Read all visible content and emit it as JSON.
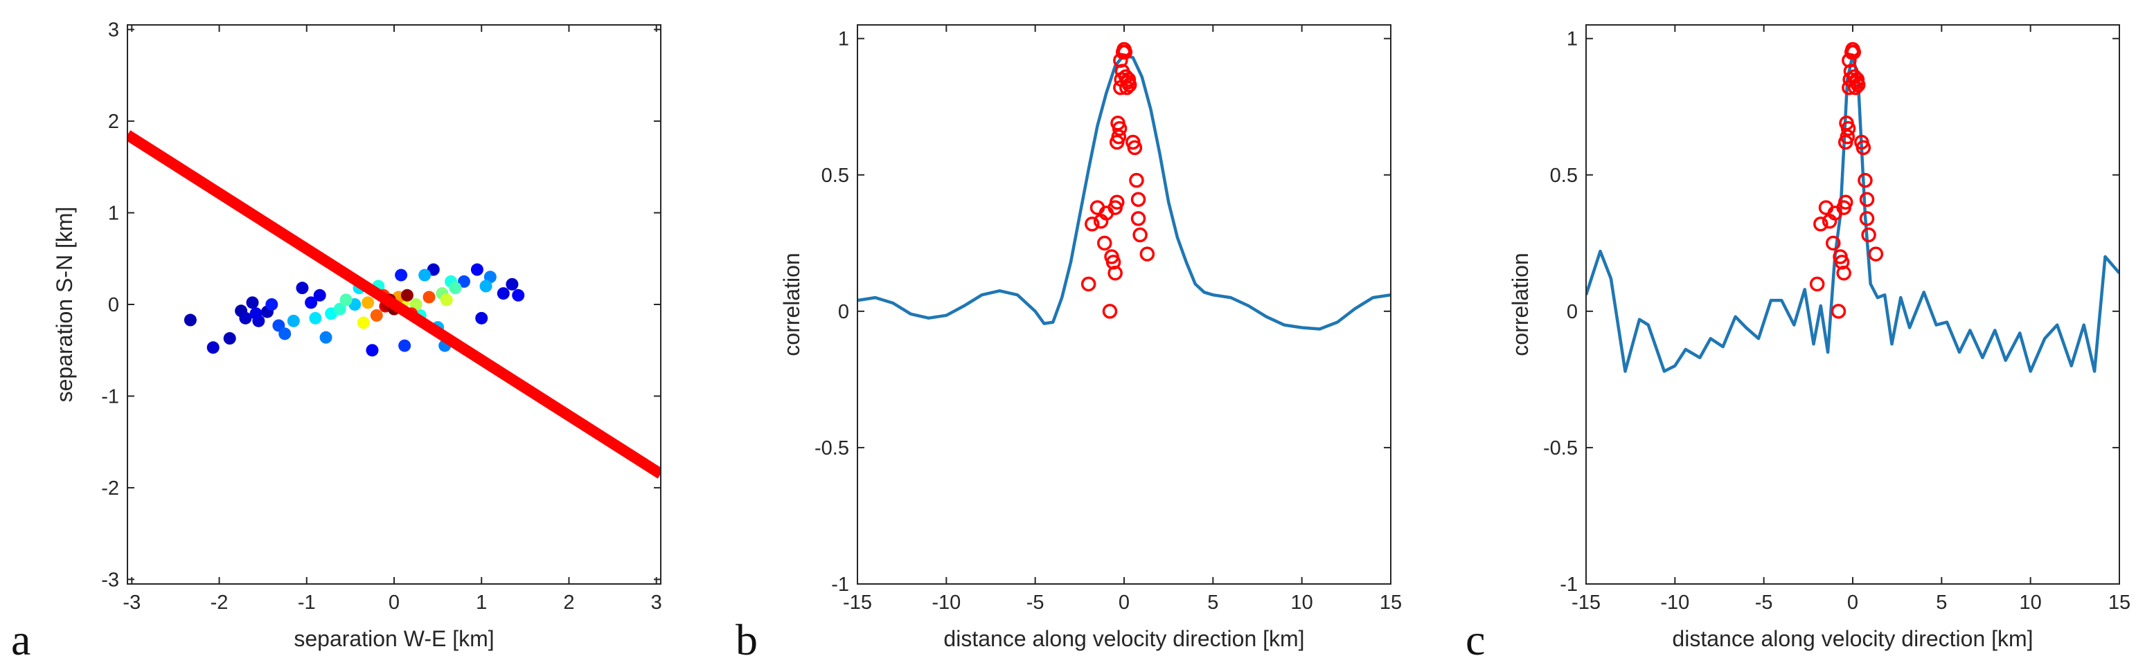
{
  "chart_data": [
    {
      "type": "scatter",
      "panel_label": "a",
      "title": "",
      "xlabel": "separation W-E [km]",
      "ylabel": "separation S-N [km]",
      "xlim": [
        -3.05,
        3.05
      ],
      "ylim": [
        -3.05,
        3.05
      ],
      "xticks": [
        -3,
        -2,
        -1,
        0,
        1,
        2,
        3
      ],
      "yticks": [
        -3,
        -2,
        -1,
        0,
        1,
        2,
        3
      ],
      "xtick_labels": [
        "-3",
        "-2",
        "-1",
        "0",
        "1",
        "2",
        "3"
      ],
      "ytick_labels": [
        "-3",
        "-2",
        "-1",
        "0",
        "1",
        "2",
        "3"
      ],
      "grid": false,
      "line": {
        "name": "velocity direction",
        "x": [
          -3.05,
          3.05
        ],
        "y": [
          1.85,
          -1.85
        ],
        "color": "#ff0000"
      },
      "points": [
        {
          "x": -2.33,
          "y": -0.17,
          "c": 0.05
        },
        {
          "x": -2.07,
          "y": -0.47,
          "c": 0.08
        },
        {
          "x": -1.88,
          "y": -0.37,
          "c": 0.06
        },
        {
          "x": -1.75,
          "y": -0.07,
          "c": 0.05
        },
        {
          "x": -1.7,
          "y": -0.15,
          "c": 0.07
        },
        {
          "x": -1.62,
          "y": 0.02,
          "c": 0.06
        },
        {
          "x": -1.58,
          "y": -0.1,
          "c": 0.1
        },
        {
          "x": -1.55,
          "y": -0.18,
          "c": 0.08
        },
        {
          "x": -1.45,
          "y": -0.08,
          "c": 0.06
        },
        {
          "x": -1.4,
          "y": 0.0,
          "c": 0.15
        },
        {
          "x": -1.32,
          "y": -0.23,
          "c": 0.2
        },
        {
          "x": -1.25,
          "y": -0.32,
          "c": 0.22
        },
        {
          "x": -1.15,
          "y": -0.18,
          "c": 0.3
        },
        {
          "x": -1.05,
          "y": 0.18,
          "c": 0.08
        },
        {
          "x": -0.95,
          "y": 0.02,
          "c": 0.12
        },
        {
          "x": -0.9,
          "y": -0.15,
          "c": 0.35
        },
        {
          "x": -0.85,
          "y": 0.1,
          "c": 0.1
        },
        {
          "x": -0.78,
          "y": -0.36,
          "c": 0.25
        },
        {
          "x": -0.72,
          "y": -0.1,
          "c": 0.38
        },
        {
          "x": -0.62,
          "y": -0.05,
          "c": 0.42
        },
        {
          "x": -0.55,
          "y": 0.05,
          "c": 0.45
        },
        {
          "x": -0.45,
          "y": 0.0,
          "c": 0.32
        },
        {
          "x": -0.4,
          "y": 0.18,
          "c": 0.35
        },
        {
          "x": -0.35,
          "y": -0.2,
          "c": 0.62
        },
        {
          "x": -0.3,
          "y": 0.02,
          "c": 0.7
        },
        {
          "x": -0.25,
          "y": -0.5,
          "c": 0.12
        },
        {
          "x": -0.2,
          "y": -0.12,
          "c": 0.78
        },
        {
          "x": -0.18,
          "y": 0.2,
          "c": 0.4
        },
        {
          "x": -0.12,
          "y": 0.1,
          "c": 0.82
        },
        {
          "x": -0.1,
          "y": -0.02,
          "c": 0.9
        },
        {
          "x": -0.08,
          "y": 0.0,
          "c": 0.95
        },
        {
          "x": -0.05,
          "y": 0.05,
          "c": 0.98
        },
        {
          "x": 0.0,
          "y": -0.05,
          "c": 1.0
        },
        {
          "x": 0.05,
          "y": 0.08,
          "c": 0.72
        },
        {
          "x": 0.08,
          "y": 0.32,
          "c": 0.15
        },
        {
          "x": 0.1,
          "y": 0.02,
          "c": 0.6
        },
        {
          "x": 0.12,
          "y": -0.45,
          "c": 0.18
        },
        {
          "x": 0.15,
          "y": 0.1,
          "c": 0.98
        },
        {
          "x": 0.2,
          "y": -0.1,
          "c": 0.85
        },
        {
          "x": 0.25,
          "y": 0.0,
          "c": 0.55
        },
        {
          "x": 0.3,
          "y": -0.12,
          "c": 0.4
        },
        {
          "x": 0.35,
          "y": 0.32,
          "c": 0.3
        },
        {
          "x": 0.4,
          "y": 0.08,
          "c": 0.8
        },
        {
          "x": 0.45,
          "y": 0.38,
          "c": 0.08
        },
        {
          "x": 0.5,
          "y": -0.25,
          "c": 0.3
        },
        {
          "x": 0.55,
          "y": 0.12,
          "c": 0.5
        },
        {
          "x": 0.58,
          "y": -0.45,
          "c": 0.25
        },
        {
          "x": 0.6,
          "y": 0.05,
          "c": 0.58
        },
        {
          "x": 0.65,
          "y": 0.25,
          "c": 0.4
        },
        {
          "x": 0.7,
          "y": 0.18,
          "c": 0.45
        },
        {
          "x": 0.8,
          "y": 0.25,
          "c": 0.2
        },
        {
          "x": 0.95,
          "y": 0.38,
          "c": 0.12
        },
        {
          "x": 1.0,
          "y": -0.15,
          "c": 0.1
        },
        {
          "x": 1.05,
          "y": 0.2,
          "c": 0.3
        },
        {
          "x": 1.1,
          "y": 0.3,
          "c": 0.25
        },
        {
          "x": 1.25,
          "y": 0.12,
          "c": 0.1
        },
        {
          "x": 1.35,
          "y": 0.22,
          "c": 0.08
        },
        {
          "x": 1.42,
          "y": 0.1,
          "c": 0.12
        }
      ]
    },
    {
      "type": "line",
      "panel_label": "b",
      "title": "",
      "xlabel": "distance along velocity direction [km]",
      "ylabel": "correlation",
      "xlim": [
        -15,
        15
      ],
      "ylim": [
        -1,
        1.05
      ],
      "xticks": [
        -15,
        -10,
        -5,
        0,
        5,
        10,
        15
      ],
      "yticks": [
        -1,
        -0.5,
        0,
        0.5,
        1
      ],
      "xtick_labels": [
        "-15",
        "-10",
        "-5",
        "0",
        "5",
        "10",
        "15"
      ],
      "ytick_labels": [
        "-1",
        "-0.5",
        "0",
        "0.5",
        "1"
      ],
      "grid": false,
      "series": [
        {
          "name": "model curve",
          "color": "#1f77b4",
          "x": [
            -15,
            -14,
            -13,
            -12,
            -11,
            -10,
            -9,
            -8,
            -7,
            -6,
            -5,
            -4.5,
            -4,
            -3.5,
            -3,
            -2.5,
            -2,
            -1.5,
            -1,
            -0.5,
            0,
            0.5,
            1,
            1.5,
            2,
            2.5,
            3,
            3.5,
            4,
            4.5,
            5,
            6,
            7,
            8,
            9,
            10,
            11,
            12,
            13,
            14,
            15
          ],
          "y": [
            0.04,
            0.05,
            0.03,
            -0.01,
            -0.025,
            -0.015,
            0.02,
            0.06,
            0.075,
            0.06,
            0.0,
            -0.045,
            -0.04,
            0.05,
            0.18,
            0.35,
            0.52,
            0.68,
            0.8,
            0.9,
            0.94,
            0.93,
            0.86,
            0.74,
            0.58,
            0.4,
            0.27,
            0.18,
            0.1,
            0.07,
            0.06,
            0.05,
            0.02,
            -0.02,
            -0.05,
            -0.06,
            -0.065,
            -0.04,
            0.01,
            0.05,
            0.06
          ]
        }
      ],
      "points": {
        "name": "observed",
        "color": "#ff0000",
        "x": [
          -2.0,
          -1.8,
          -1.5,
          -1.3,
          -1.1,
          -1.0,
          -0.8,
          -0.7,
          -0.6,
          -0.5,
          -0.5,
          -0.4,
          -0.4,
          -0.35,
          -0.3,
          -0.25,
          -0.2,
          -0.2,
          -0.15,
          -0.1,
          -0.05,
          0.0,
          0.05,
          0.1,
          0.15,
          0.2,
          0.25,
          0.3,
          0.5,
          0.6,
          0.7,
          0.8,
          0.8,
          0.9,
          1.3
        ],
        "y": [
          0.1,
          0.32,
          0.38,
          0.33,
          0.25,
          0.36,
          0.0,
          0.2,
          0.18,
          0.38,
          0.14,
          0.4,
          0.62,
          0.69,
          0.64,
          0.67,
          0.82,
          0.92,
          0.85,
          0.88,
          0.95,
          0.96,
          0.95,
          0.86,
          0.82,
          0.84,
          0.85,
          0.83,
          0.62,
          0.6,
          0.48,
          0.41,
          0.34,
          0.28,
          0.21
        ]
      }
    },
    {
      "type": "line",
      "panel_label": "c",
      "title": "",
      "xlabel": "distance along velocity direction [km]",
      "ylabel": "correlation",
      "xlim": [
        -15,
        15
      ],
      "ylim": [
        -1,
        1.05
      ],
      "xticks": [
        -15,
        -10,
        -5,
        0,
        5,
        10,
        15
      ],
      "yticks": [
        -1,
        -0.5,
        0,
        0.5,
        1
      ],
      "xtick_labels": [
        "-15",
        "-10",
        "-5",
        "0",
        "5",
        "10",
        "15"
      ],
      "ytick_labels": [
        "-1",
        "-0.5",
        "0",
        "0.5",
        "1"
      ],
      "grid": false,
      "series": [
        {
          "name": "model curve",
          "color": "#1f77b4",
          "x": [
            -15,
            -14.2,
            -13.6,
            -12.8,
            -12.0,
            -11.5,
            -10.6,
            -10.0,
            -9.4,
            -8.6,
            -8.0,
            -7.3,
            -6.6,
            -6.0,
            -5.3,
            -4.6,
            -4.0,
            -3.3,
            -2.7,
            -2.2,
            -1.8,
            -1.4,
            -1.0,
            -0.7,
            -0.5,
            -0.3,
            0.0,
            0.3,
            0.5,
            0.7,
            1.0,
            1.4,
            1.8,
            2.2,
            2.7,
            3.2,
            4.0,
            4.7,
            5.3,
            6.0,
            6.6,
            7.3,
            8.0,
            8.6,
            9.4,
            10.0,
            10.8,
            11.5,
            12.3,
            13.0,
            13.6,
            14.2,
            15.0
          ],
          "y": [
            0.06,
            0.22,
            0.12,
            -0.22,
            -0.03,
            -0.05,
            -0.22,
            -0.2,
            -0.14,
            -0.17,
            -0.1,
            -0.13,
            -0.02,
            -0.06,
            -0.1,
            0.04,
            0.04,
            -0.05,
            0.08,
            -0.12,
            0.02,
            -0.15,
            0.2,
            0.35,
            0.6,
            0.85,
            0.94,
            0.85,
            0.6,
            0.35,
            0.1,
            0.05,
            0.06,
            -0.12,
            0.05,
            -0.06,
            0.07,
            -0.05,
            -0.04,
            -0.15,
            -0.07,
            -0.17,
            -0.07,
            -0.18,
            -0.08,
            -0.22,
            -0.1,
            -0.05,
            -0.2,
            -0.05,
            -0.22,
            0.2,
            0.14
          ]
        }
      ],
      "points": {
        "name": "observed",
        "color": "#ff0000",
        "x": [
          -2.0,
          -1.8,
          -1.5,
          -1.3,
          -1.1,
          -1.0,
          -0.8,
          -0.7,
          -0.6,
          -0.5,
          -0.5,
          -0.4,
          -0.4,
          -0.35,
          -0.3,
          -0.25,
          -0.2,
          -0.2,
          -0.15,
          -0.1,
          -0.05,
          0.0,
          0.05,
          0.1,
          0.15,
          0.2,
          0.25,
          0.3,
          0.5,
          0.6,
          0.7,
          0.8,
          0.8,
          0.9,
          1.3
        ],
        "y": [
          0.1,
          0.32,
          0.38,
          0.33,
          0.25,
          0.36,
          0.0,
          0.2,
          0.18,
          0.38,
          0.14,
          0.4,
          0.62,
          0.69,
          0.64,
          0.67,
          0.82,
          0.92,
          0.85,
          0.88,
          0.95,
          0.96,
          0.95,
          0.86,
          0.82,
          0.84,
          0.85,
          0.83,
          0.62,
          0.6,
          0.48,
          0.41,
          0.34,
          0.28,
          0.21
        ]
      }
    }
  ]
}
